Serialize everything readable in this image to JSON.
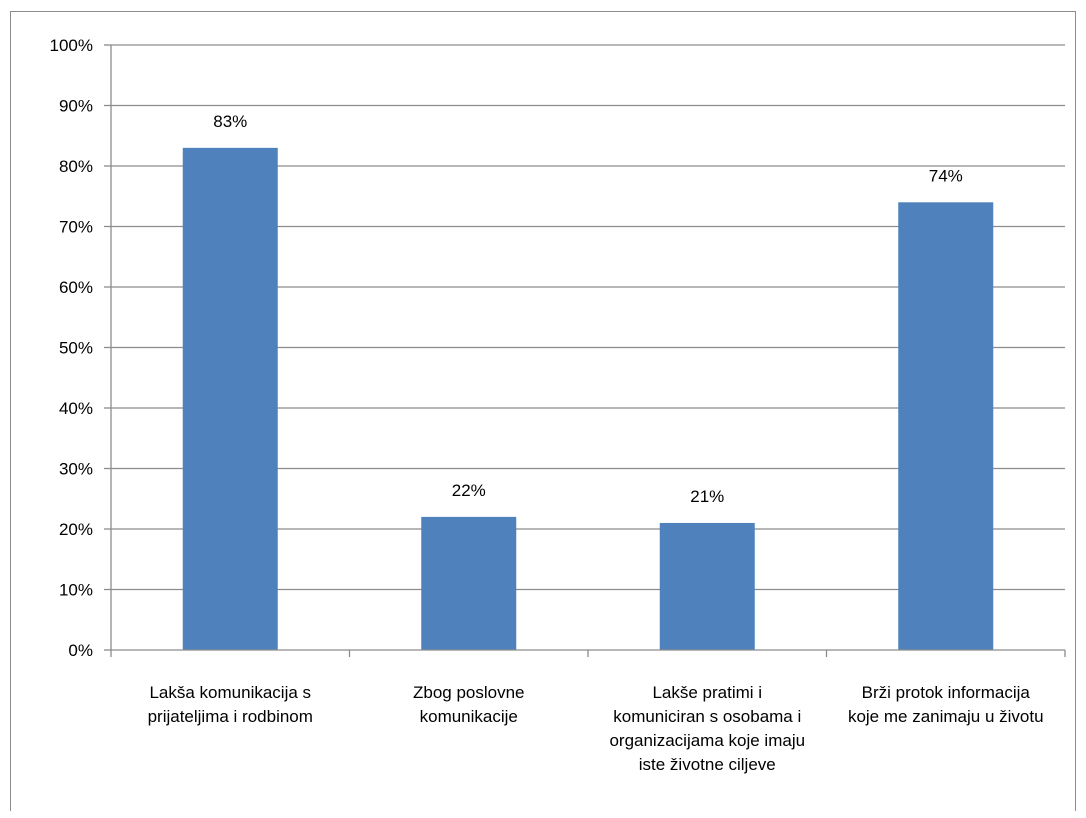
{
  "chart_data": {
    "type": "bar",
    "categories": [
      [
        "Lakša komunikacija s",
        "prijateljima i rodbinom"
      ],
      [
        "Zbog poslovne",
        "komunikacije"
      ],
      [
        "Lakše pratimi i",
        "komuniciran s osobama i",
        "organizacijama koje imaju",
        "iste životne ciljeve"
      ],
      [
        "Brži protok informacija",
        "koje me zanimaju u životu"
      ]
    ],
    "values": [
      83,
      22,
      21,
      74
    ],
    "data_labels": [
      "83%",
      "22%",
      "21%",
      "74%"
    ],
    "yticks": [
      "0%",
      "10%",
      "20%",
      "30%",
      "40%",
      "50%",
      "60%",
      "70%",
      "80%",
      "90%",
      "100%"
    ],
    "ylim": [
      0,
      100
    ],
    "grid": true,
    "bar_color": "#4f81bd",
    "grid_color": "#8c8c8c"
  }
}
